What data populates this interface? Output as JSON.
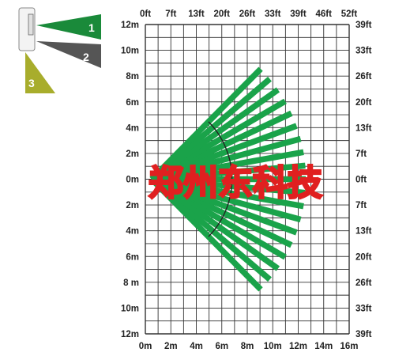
{
  "top_axis_ft": [
    "0ft",
    "7ft",
    "13ft",
    "20ft",
    "26ft",
    "33ft",
    "39ft",
    "46ft",
    "52ft"
  ],
  "bottom_axis_m": [
    "0m",
    "2m",
    "4m",
    "6m",
    "8m",
    "10m",
    "12m",
    "14m",
    "16m"
  ],
  "left_axis_m": [
    "12m",
    "10m",
    "8m",
    "6m",
    "4m",
    "2m",
    "0m",
    "2m",
    "4m",
    "6m",
    "8 m",
    "10m",
    "12m"
  ],
  "right_axis_ft": [
    "39ft",
    "33ft",
    "26ft",
    "20ft",
    "13ft",
    "7ft",
    "0ft",
    "7ft",
    "13ft",
    "20ft",
    "26ft",
    "33ft",
    "39ft"
  ],
  "legend": [
    {
      "id": "1",
      "color": "#1a8a3a"
    },
    {
      "id": "2",
      "color": "#555555"
    },
    {
      "id": "3",
      "color": "#a8ad2c"
    }
  ],
  "beam_color": "#1aa34a",
  "watermark": "郑州东科技",
  "coverage": {
    "origin_m": [
      0.5,
      0
    ],
    "long_range_beams": {
      "count": 19,
      "spread_deg": 90,
      "reach_m": 12.1
    },
    "short_range_beams": {
      "count": 10,
      "spread_deg": 90,
      "reach_m": 4.4
    },
    "arc_radius_m": 6.3
  }
}
